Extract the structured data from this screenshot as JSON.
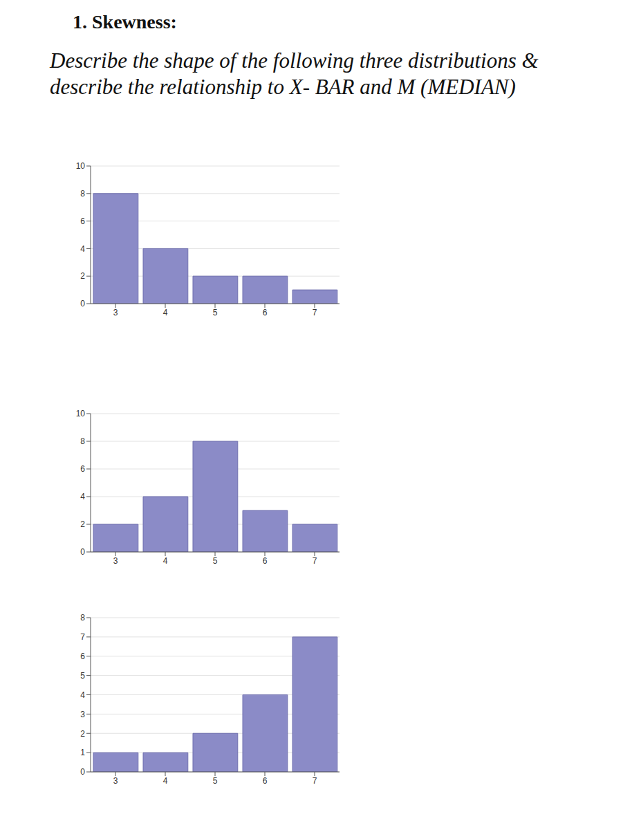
{
  "header": {
    "title": "1. Skewness:",
    "instructions": [
      "Describe the shape of the following three distributions &",
      "describe the relationship to X- BAR and M (MEDIAN)"
    ]
  },
  "chart_data": [
    {
      "type": "histogram",
      "bins": [
        2.5,
        3.5,
        4.5,
        5.5,
        6.5,
        7.5
      ],
      "values": [
        8,
        4,
        2,
        2,
        1
      ],
      "color": "#8b8bc7",
      "xlim": [
        2.5,
        7.5
      ],
      "xticks": [
        3,
        4,
        5,
        6,
        7
      ],
      "ylim": [
        0,
        10
      ],
      "yticks": [
        0,
        2,
        4,
        6,
        8,
        10
      ],
      "grid": true
    },
    {
      "type": "histogram",
      "bins": [
        2.5,
        3.5,
        4.5,
        5.5,
        6.5,
        7.5
      ],
      "values": [
        2,
        4,
        8,
        3,
        2
      ],
      "color": "#8b8bc7",
      "xlim": [
        2.5,
        7.5
      ],
      "xticks": [
        3,
        4,
        5,
        6,
        7
      ],
      "ylim": [
        0,
        10
      ],
      "yticks": [
        0,
        2,
        4,
        6,
        8,
        10
      ],
      "grid": true
    },
    {
      "type": "histogram",
      "bins": [
        2.5,
        3.5,
        4.5,
        5.5,
        6.5,
        7.5
      ],
      "values": [
        1,
        1,
        2,
        4,
        7
      ],
      "color": "#8b8bc7",
      "xlim": [
        2.5,
        7.5
      ],
      "xticks": [
        3,
        4,
        5,
        6,
        7
      ],
      "ylim": [
        0,
        8
      ],
      "yticks": [
        0,
        1,
        2,
        3,
        4,
        5,
        6,
        7,
        8
      ],
      "grid": true
    }
  ]
}
